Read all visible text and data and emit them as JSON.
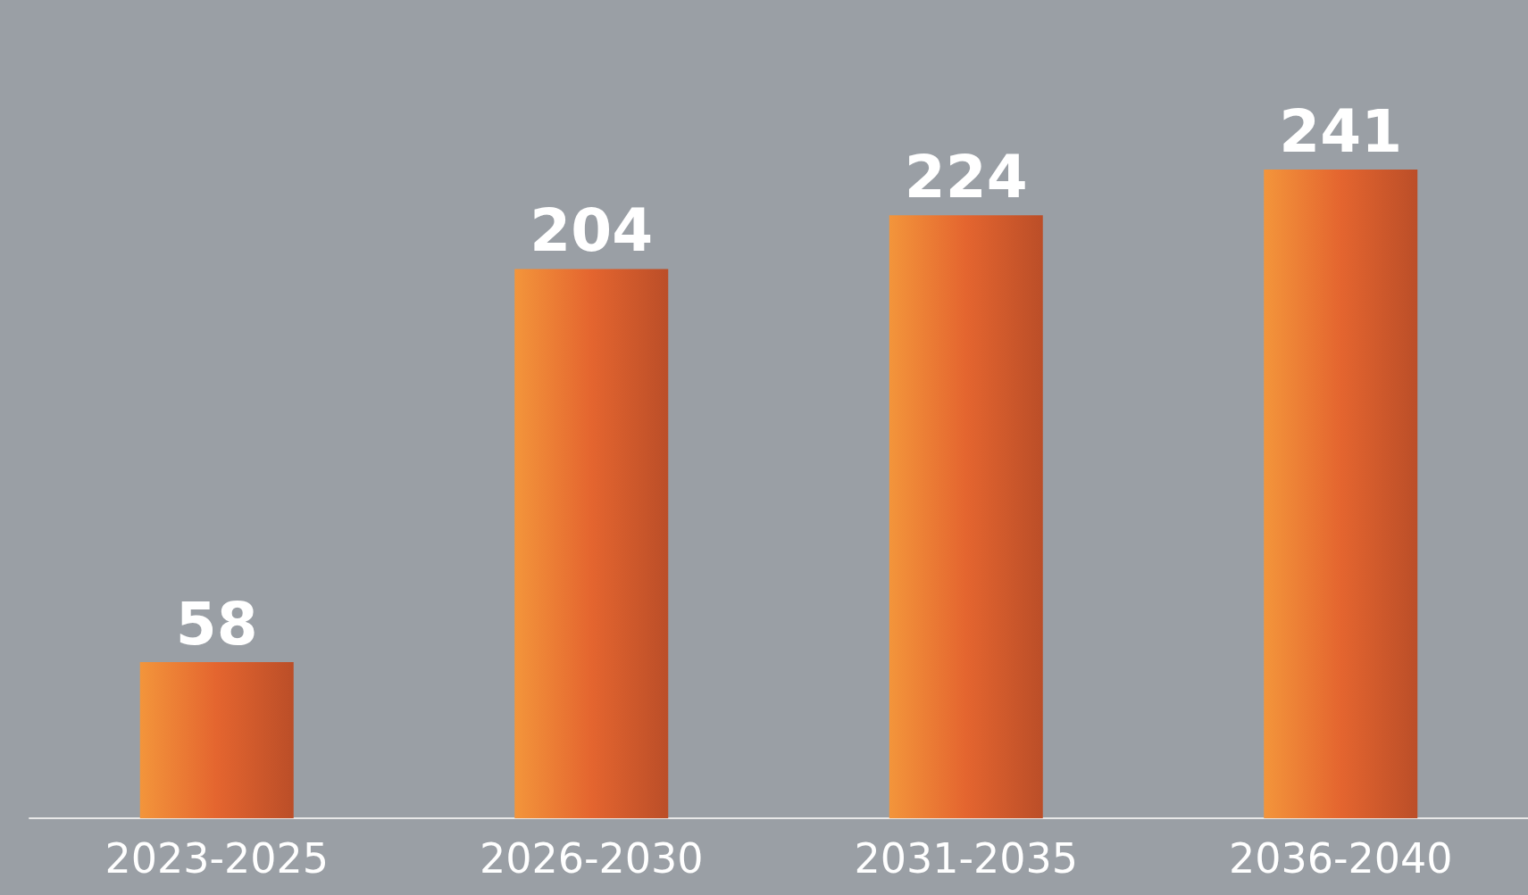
{
  "chart_data": {
    "type": "bar",
    "categories": [
      "2023-2025",
      "2026-2030",
      "2031-2035",
      "2036-2040"
    ],
    "values": [
      58,
      204,
      224,
      241
    ],
    "color": "#e4652f",
    "data_labels": true,
    "tick_labels": "x"
  }
}
